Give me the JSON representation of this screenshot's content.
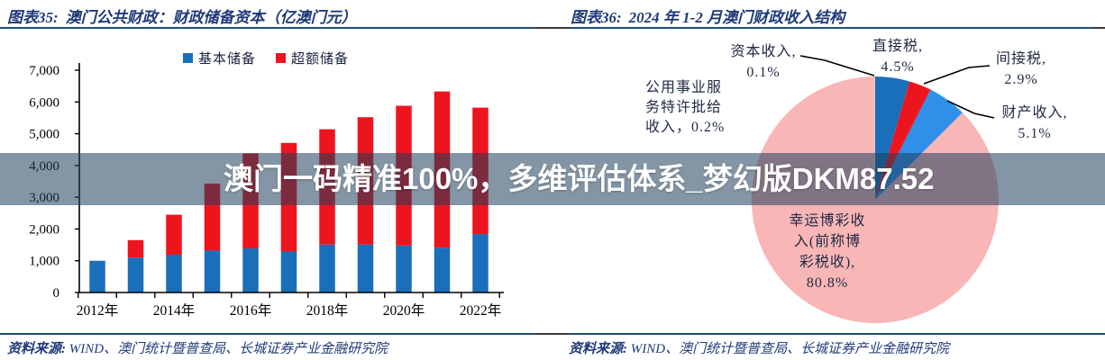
{
  "left_panel": {
    "header_label": "图表35:",
    "header_title": "澳门公共财政：财政储备资本（亿澳门元）",
    "source_label": "资料来源:",
    "source_text": "WIND、澳门统计暨普查局、长城证券产业金融研究院"
  },
  "right_panel": {
    "header_label": "图表36:",
    "header_title": "2024 年 1-2 月澳门财政收入结构",
    "source_label": "资料来源:",
    "source_text": "WIND、澳门统计暨普查局、长城证券产业金融研究院",
    "annotations": {
      "capital": "资本收入,\n0.1%",
      "public_utility": "公用事业服\n务特许批给\n收入，0.2%",
      "direct": "直接税,\n4.5%",
      "indirect": "间接税,\n2.9%",
      "property": "财产收入,\n5.1%",
      "lucky": "幸运博彩收\n入(前称博\n彩税收),\n80.8%"
    }
  },
  "watermark": {
    "text": "澳门一码精准100%，多维评估体系_梦幻版DKM87.52",
    "band_color": "rgba(31,62,91,0.55)",
    "text_color": "#ffffff"
  },
  "colors": {
    "navy_text": "#1e3a78",
    "rule": "#1f4e79",
    "bar_blue": "#1a6fba",
    "bar_red": "#ee141e",
    "pie_light_blue": "#2f90ea",
    "pie_pink": "#f8b6b6"
  },
  "chart_data": [
    {
      "type": "bar",
      "stacked": true,
      "title": "澳门公共财政：财政储备资本（亿澳门元）",
      "categories": [
        "2012年",
        "2013年",
        "2014年",
        "2015年",
        "2016年",
        "2017年",
        "2018年",
        "2019年",
        "2020年",
        "2021年",
        "2022年"
      ],
      "x_tick_labels": [
        "2012年",
        "2014年",
        "2016年",
        "2018年",
        "2020年",
        "2022年"
      ],
      "series": [
        {
          "name": "基本储备",
          "color": "#1a6fba",
          "values": [
            1000,
            1100,
            1190,
            1320,
            1390,
            1290,
            1510,
            1510,
            1480,
            1410,
            1840
          ]
        },
        {
          "name": "超额储备",
          "color": "#ee141e",
          "values": [
            0,
            550,
            1260,
            2110,
            2990,
            3420,
            3630,
            4010,
            4400,
            4920,
            3980
          ]
        }
      ],
      "ylabel": "",
      "ylim": [
        0,
        7000
      ],
      "ytick_step": 1000,
      "legend_position": "top",
      "grid": false
    },
    {
      "type": "pie",
      "title": "2024 年 1-2 月澳门财政收入结构",
      "slices": [
        {
          "label": "直接税",
          "pct": 4.5,
          "color": "#1a6fba"
        },
        {
          "label": "间接税",
          "pct": 2.9,
          "color": "#ee141e"
        },
        {
          "label": "财产收入",
          "pct": 5.1,
          "color": "#2f90ea"
        },
        {
          "label": "幸运博彩收入(前称博彩税收)",
          "pct": 80.8,
          "color": "#f8b6b6",
          "fill_remainder": true
        },
        {
          "label": "公用事业服务特许批给收入",
          "pct": 0.2,
          "color": "#f8b6b6"
        },
        {
          "label": "资本收入",
          "pct": 0.1,
          "color": "#f8b6b6"
        }
      ],
      "start_angle_deg": 0,
      "clockwise": true,
      "legend_position": "none"
    }
  ]
}
